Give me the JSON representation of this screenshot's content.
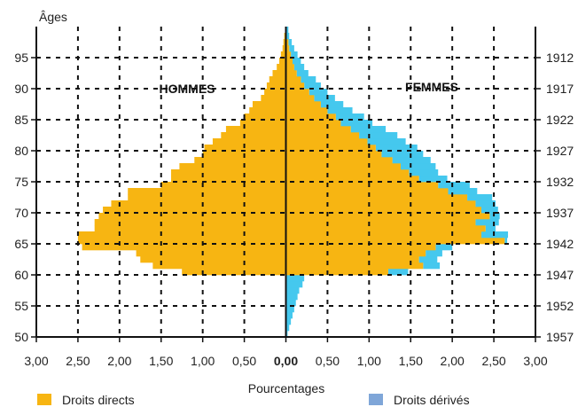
{
  "chart_data": {
    "type": "bar",
    "orientation": "horizontal",
    "subtype": "population-pyramid",
    "y_title": "Âges",
    "x_title": "Pourcentages",
    "left_label": "HOMMES",
    "right_label": "FEMMES",
    "xlim": [
      -3.0,
      3.0
    ],
    "ylim": [
      50,
      100
    ],
    "x_ticks": [
      -3,
      -2.5,
      -2,
      -1.5,
      -1,
      -0.5,
      0,
      0.5,
      1,
      1.5,
      2,
      2.5,
      3
    ],
    "x_tick_labels": [
      "3,00",
      "2,50",
      "2,00",
      "1,50",
      "1,00",
      "0,50",
      "0,00",
      "0,50",
      "1,00",
      "1,50",
      "2,00",
      "2,50",
      "3,00"
    ],
    "y_ticks": [
      50,
      55,
      60,
      65,
      70,
      75,
      80,
      85,
      90,
      95
    ],
    "y_tick_labels": [
      "50",
      "55",
      "60",
      "65",
      "70",
      "75",
      "80",
      "85",
      "90",
      "95"
    ],
    "right_axis_labels": [
      "1957",
      "1952",
      "1947",
      "1942",
      "1937",
      "1932",
      "1927",
      "1922",
      "1917",
      "1912"
    ],
    "grid": "dashed",
    "legend": [
      {
        "name": "Droits directs",
        "color": "#f7b512"
      },
      {
        "name": "Droits dérivés",
        "color": "#7fa6d8"
      }
    ],
    "colors": {
      "direct": "#f7b512",
      "derived": "#45c8ee",
      "legend_derived": "#7fa6d8"
    },
    "ages": [
      50,
      51,
      52,
      53,
      54,
      55,
      56,
      57,
      58,
      59,
      60,
      61,
      62,
      63,
      64,
      65,
      66,
      67,
      68,
      69,
      70,
      71,
      72,
      73,
      74,
      75,
      76,
      77,
      78,
      79,
      80,
      81,
      82,
      83,
      84,
      85,
      86,
      87,
      88,
      89,
      90,
      91,
      92,
      93,
      94,
      95,
      96,
      97,
      98,
      99
    ],
    "series": [
      {
        "name": "Droits directs",
        "side": "left",
        "values": [
          0,
          0,
          0,
          0,
          0,
          0,
          0,
          0,
          0,
          0,
          1.25,
          1.6,
          1.75,
          1.8,
          2.45,
          2.5,
          2.5,
          2.3,
          2.3,
          2.25,
          2.2,
          2.1,
          1.9,
          1.9,
          1.5,
          1.38,
          1.38,
          1.28,
          1.1,
          1.0,
          0.98,
          0.88,
          0.78,
          0.72,
          0.55,
          0.5,
          0.44,
          0.4,
          0.3,
          0.26,
          0.23,
          0.2,
          0.16,
          0.11,
          0.08,
          0.06,
          0.04,
          0.03,
          0.02,
          0.01
        ]
      },
      {
        "name": "Droits directs",
        "side": "right",
        "values": [
          0,
          0,
          0,
          0,
          0,
          0,
          0,
          0,
          0,
          0,
          1.23,
          1.65,
          1.6,
          1.68,
          1.8,
          2.63,
          2.35,
          2.4,
          2.28,
          2.45,
          2.35,
          2.28,
          2.18,
          1.95,
          1.83,
          1.6,
          1.48,
          1.38,
          1.28,
          1.15,
          1.08,
          0.98,
          0.88,
          0.78,
          0.66,
          0.6,
          0.5,
          0.42,
          0.34,
          0.28,
          0.22,
          0.18,
          0.13,
          0.1,
          0.08,
          0.06,
          0.04,
          0.03,
          0.01,
          0.01
        ]
      },
      {
        "name": "Droits dérivés",
        "side": "right",
        "values": [
          0.02,
          0.04,
          0.06,
          0.08,
          0.1,
          0.12,
          0.14,
          0.16,
          0.2,
          0.22,
          0.24,
          0.2,
          0.22,
          0.2,
          0.2,
          0.03,
          0.32,
          0.12,
          0.28,
          0.12,
          0.2,
          0.24,
          0.3,
          0.35,
          0.38,
          0.34,
          0.35,
          0.42,
          0.46,
          0.5,
          0.5,
          0.46,
          0.46,
          0.42,
          0.38,
          0.34,
          0.3,
          0.27,
          0.25,
          0.22,
          0.2,
          0.18,
          0.14,
          0.12,
          0.1,
          0.08,
          0.06,
          0.04,
          0.03,
          0.02
        ]
      }
    ]
  }
}
